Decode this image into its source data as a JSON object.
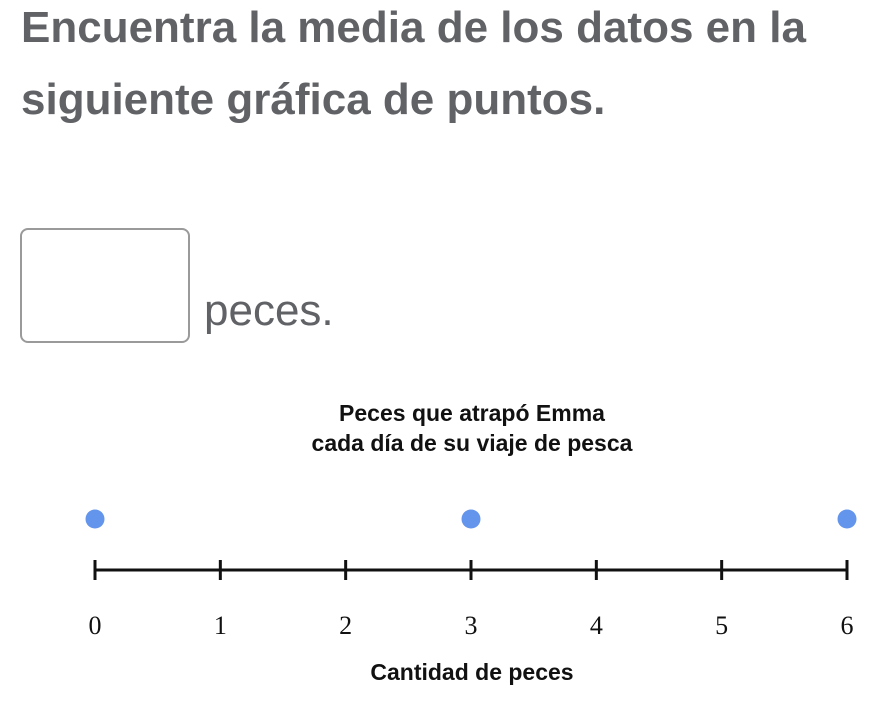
{
  "question": {
    "text": "Encuentra la media de los datos en la siguiente gráfica de puntos."
  },
  "answer": {
    "value": "",
    "placeholder": "",
    "unit": "peces."
  },
  "colors": {
    "dot": "#6495ed",
    "axis": "#111111",
    "text": "#606266"
  },
  "chart_data": {
    "type": "scatter",
    "title": [
      "Peces que atrapó Emma",
      "cada día de su viaje de pesca"
    ],
    "xlabel": "Cantidad de peces",
    "ylabel": "",
    "xlim": [
      0,
      6
    ],
    "ticks": [
      0,
      1,
      2,
      3,
      4,
      5,
      6
    ],
    "tick_labels": [
      "0",
      "1",
      "2",
      "3",
      "4",
      "5",
      "6"
    ],
    "series": [
      {
        "points": [
          {
            "x": 0,
            "count": 1
          },
          {
            "x": 3,
            "count": 1
          },
          {
            "x": 6,
            "count": 1
          }
        ]
      }
    ],
    "grid": false,
    "legend": "none"
  }
}
